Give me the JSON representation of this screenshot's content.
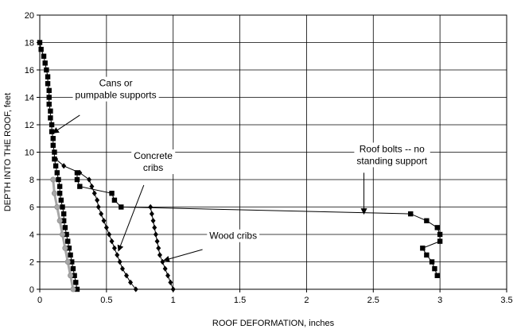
{
  "chart_data": {
    "type": "line",
    "title": "",
    "xlabel": "ROOF DEFORMATION, inches",
    "ylabel": "DEPTH INTO THE ROOF, feet",
    "xlim": [
      0,
      3.5
    ],
    "ylim": [
      0,
      20
    ],
    "x_ticks": [
      "0",
      "0.5",
      "1",
      "1.5",
      "2",
      "2.5",
      "3",
      "3.5"
    ],
    "y_ticks": [
      "0",
      "2",
      "4",
      "6",
      "8",
      "10",
      "12",
      "14",
      "16",
      "18",
      "20"
    ],
    "grid": true,
    "legend": "none",
    "colors": {
      "line": "#000000",
      "cans": "#a6a6a6",
      "markers": "#000000"
    },
    "series": [
      {
        "key": "roof_bolts",
        "marker": "square",
        "points": [
          [
            0.0,
            18.0
          ],
          [
            0.01,
            17.5
          ],
          [
            0.03,
            17.0
          ],
          [
            0.04,
            16.5
          ],
          [
            0.05,
            16.0
          ],
          [
            0.06,
            15.5
          ],
          [
            0.06,
            15.0
          ],
          [
            0.07,
            14.5
          ],
          [
            0.07,
            14.0
          ],
          [
            0.07,
            13.5
          ],
          [
            0.08,
            13.0
          ],
          [
            0.08,
            12.5
          ],
          [
            0.09,
            12.0
          ],
          [
            0.09,
            11.5
          ],
          [
            0.1,
            11.0
          ],
          [
            0.1,
            10.5
          ],
          [
            0.11,
            10.0
          ],
          [
            0.11,
            9.5
          ],
          [
            0.12,
            9.0
          ],
          [
            0.13,
            8.5
          ],
          [
            0.14,
            8.0
          ],
          [
            0.15,
            7.5
          ],
          [
            0.15,
            7.0
          ],
          [
            0.16,
            6.5
          ],
          [
            0.17,
            6.0
          ],
          [
            0.18,
            5.5
          ],
          [
            0.18,
            5.0
          ],
          [
            0.19,
            4.5
          ],
          [
            0.2,
            4.0
          ],
          [
            0.21,
            3.5
          ],
          [
            0.22,
            3.0
          ],
          [
            0.23,
            2.5
          ],
          [
            0.24,
            2.0
          ],
          [
            0.25,
            1.5
          ],
          [
            0.26,
            1.0
          ],
          [
            0.27,
            0.5
          ],
          [
            0.28,
            0.0
          ]
        ]
      },
      {
        "key": "roof_bolts_far",
        "marker": "square",
        "points": [
          [
            0.28,
            8.5
          ],
          [
            0.28,
            8.0
          ],
          [
            0.3,
            7.5
          ],
          [
            0.54,
            7.0
          ],
          [
            0.56,
            6.5
          ],
          [
            0.61,
            6.0
          ],
          [
            2.78,
            5.5
          ],
          [
            2.9,
            5.0
          ],
          [
            2.98,
            4.5
          ],
          [
            3.0,
            4.0
          ],
          [
            3.0,
            3.5
          ],
          [
            2.87,
            3.0
          ],
          [
            2.9,
            2.5
          ],
          [
            2.94,
            2.0
          ],
          [
            2.96,
            1.5
          ],
          [
            2.98,
            1.0
          ]
        ]
      },
      {
        "key": "concrete_cribs",
        "marker": "diamond",
        "points": [
          [
            0.12,
            9.5
          ],
          [
            0.18,
            9.0
          ],
          [
            0.3,
            8.5
          ],
          [
            0.37,
            8.0
          ],
          [
            0.39,
            7.5
          ],
          [
            0.41,
            7.0
          ],
          [
            0.43,
            6.5
          ],
          [
            0.44,
            6.0
          ],
          [
            0.46,
            5.5
          ],
          [
            0.48,
            5.0
          ],
          [
            0.5,
            4.5
          ],
          [
            0.52,
            4.0
          ],
          [
            0.54,
            3.5
          ],
          [
            0.56,
            3.0
          ],
          [
            0.58,
            2.5
          ],
          [
            0.6,
            2.0
          ],
          [
            0.62,
            1.5
          ],
          [
            0.65,
            1.0
          ],
          [
            0.68,
            0.5
          ],
          [
            0.72,
            0.0
          ]
        ]
      },
      {
        "key": "wood_cribs",
        "marker": "diamond",
        "points": [
          [
            0.83,
            6.0
          ],
          [
            0.84,
            5.5
          ],
          [
            0.85,
            5.0
          ],
          [
            0.86,
            4.5
          ],
          [
            0.87,
            4.0
          ],
          [
            0.88,
            3.5
          ],
          [
            0.89,
            3.0
          ],
          [
            0.9,
            2.5
          ],
          [
            0.92,
            2.0
          ],
          [
            0.94,
            1.5
          ],
          [
            0.96,
            1.0
          ],
          [
            0.98,
            0.5
          ],
          [
            1.0,
            0.0
          ]
        ]
      },
      {
        "key": "cans",
        "marker": "circle",
        "points": [
          [
            0.1,
            8.0
          ],
          [
            0.11,
            7.0
          ],
          [
            0.13,
            6.0
          ],
          [
            0.15,
            5.0
          ],
          [
            0.17,
            4.0
          ],
          [
            0.19,
            3.0
          ],
          [
            0.21,
            2.0
          ],
          [
            0.23,
            1.0
          ],
          [
            0.25,
            0.0
          ]
        ]
      }
    ],
    "annotations": [
      {
        "lines": [
          "Cans or",
          "pumpable supports"
        ],
        "text_at": [
          0.57,
          14.6
        ],
        "arrow_from": [
          0.3,
          12.7
        ],
        "arrow_to": [
          0.1,
          11.4
        ]
      },
      {
        "lines": [
          "Concrete",
          "cribs"
        ],
        "text_at": [
          0.85,
          9.3
        ],
        "arrow_from": [
          0.78,
          7.6
        ],
        "arrow_to": [
          0.59,
          2.8
        ]
      },
      {
        "lines": [
          "Wood cribs"
        ],
        "text_at": [
          1.45,
          3.9
        ],
        "arrow_from": [
          1.22,
          2.9
        ],
        "arrow_to": [
          0.93,
          2.1
        ]
      },
      {
        "lines": [
          "Roof bolts -- no",
          "standing support"
        ],
        "text_at": [
          2.64,
          9.8
        ],
        "arrow_from": [
          2.43,
          8.5
        ],
        "arrow_to": [
          2.43,
          5.5
        ]
      }
    ]
  }
}
